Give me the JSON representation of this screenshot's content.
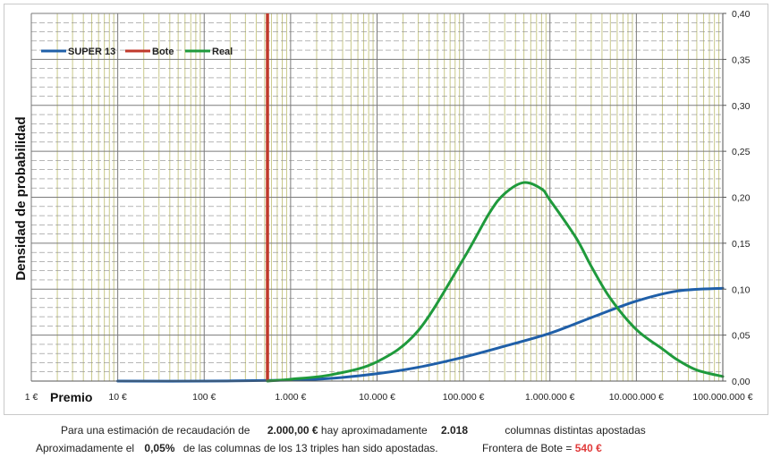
{
  "chart_data": {
    "type": "line",
    "xlabel": "Premio",
    "ylabel": "Densidad de probabilidad",
    "x_scale": "log",
    "xlim": [
      1,
      100000000
    ],
    "ylim": [
      0,
      0.4
    ],
    "y_axis_side": "right",
    "x_ticks": [
      {
        "value": 1,
        "label": "1 €"
      },
      {
        "value": 10,
        "label": "10 €"
      },
      {
        "value": 100,
        "label": "100 €"
      },
      {
        "value": 1000,
        "label": "1.000 €"
      },
      {
        "value": 10000,
        "label": "10.000 €"
      },
      {
        "value": 100000,
        "label": "100.000 €"
      },
      {
        "value": 1000000,
        "label": "1.000.000 €"
      },
      {
        "value": 10000000,
        "label": "10.000.000 €"
      },
      {
        "value": 100000000,
        "label": "100.000.000 €"
      }
    ],
    "y_ticks": [
      {
        "value": 0,
        "label": "0,00"
      },
      {
        "value": 0.05,
        "label": "0,05"
      },
      {
        "value": 0.1,
        "label": "0,10"
      },
      {
        "value": 0.15,
        "label": "0,15"
      },
      {
        "value": 0.2,
        "label": "0,20"
      },
      {
        "value": 0.25,
        "label": "0,25"
      },
      {
        "value": 0.3,
        "label": "0,30"
      },
      {
        "value": 0.35,
        "label": "0,35"
      },
      {
        "value": 0.4,
        "label": "0,40"
      }
    ],
    "grid": true,
    "legend_position": "top-left",
    "series": [
      {
        "name": "SUPER 13",
        "color": "#1f5fa8",
        "points": [
          [
            10,
            0.0
          ],
          [
            100,
            0.0
          ],
          [
            1000,
            0.001
          ],
          [
            3000,
            0.003
          ],
          [
            10000,
            0.008
          ],
          [
            30000,
            0.015
          ],
          [
            100000,
            0.026
          ],
          [
            300000,
            0.038
          ],
          [
            1000000,
            0.052
          ],
          [
            3000000,
            0.069
          ],
          [
            10000000,
            0.087
          ],
          [
            30000000,
            0.098
          ],
          [
            100000000,
            0.101
          ]
        ]
      },
      {
        "name": "Bote",
        "color": "#c0392b",
        "vertical_at": 540
      },
      {
        "name": "Real",
        "color": "#1f9a3c",
        "points": [
          [
            540,
            0.0
          ],
          [
            1000,
            0.002
          ],
          [
            3000,
            0.007
          ],
          [
            10000,
            0.021
          ],
          [
            30000,
            0.055
          ],
          [
            100000,
            0.133
          ],
          [
            200000,
            0.183
          ],
          [
            300000,
            0.204
          ],
          [
            500000,
            0.216
          ],
          [
            800000,
            0.209
          ],
          [
            1000000,
            0.197
          ],
          [
            2000000,
            0.156
          ],
          [
            3000000,
            0.125
          ],
          [
            5000000,
            0.09
          ],
          [
            10000000,
            0.056
          ],
          [
            20000000,
            0.035
          ],
          [
            30000000,
            0.023
          ],
          [
            50000000,
            0.012
          ],
          [
            100000000,
            0.005
          ]
        ]
      }
    ]
  },
  "footer": {
    "line1": {
      "prefix": "Para  una estimación de recaudación de",
      "recaudacion": "2.000,00 €",
      "middle": "hay aproximadamente",
      "columnas": "2.018",
      "suffix": "columnas distintas apostadas"
    },
    "line2": {
      "prefix": "Aproximadamente el",
      "porcentaje": "0,05%",
      "middle": "de las columnas de los 13 triples han sido apostadas.",
      "frontera_label": "Frontera de Bote =",
      "frontera_value": "540 €"
    }
  }
}
